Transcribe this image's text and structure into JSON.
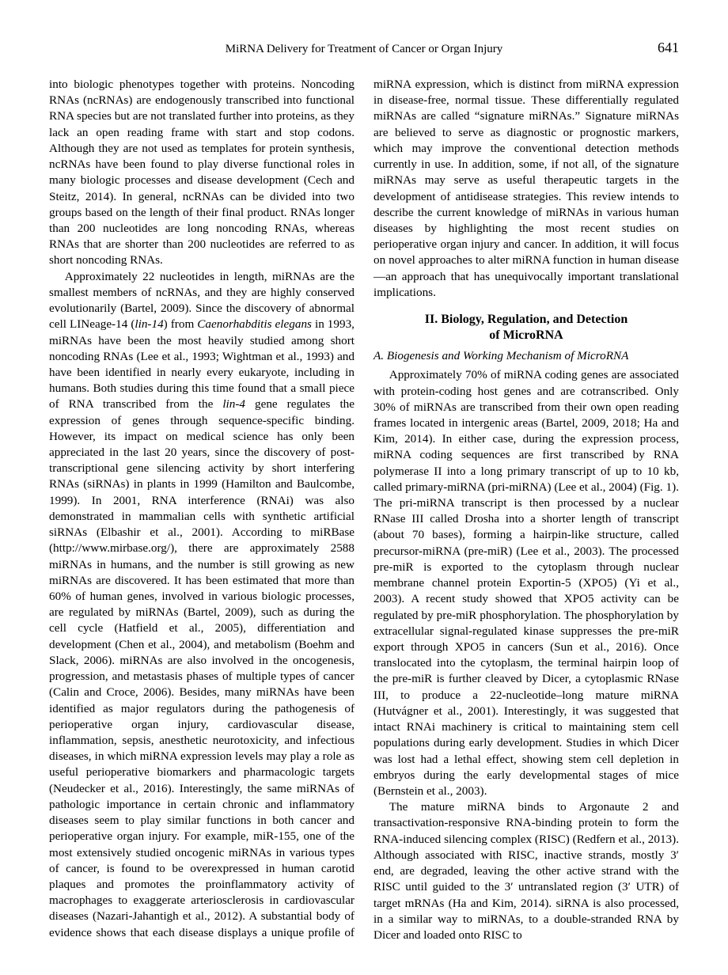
{
  "page": {
    "running_title": "MiRNA Delivery for Treatment of Cancer or Organ Injury",
    "page_number": "641"
  },
  "body": {
    "p1": "into biologic phenotypes together with proteins. Noncoding RNAs (ncRNAs) are endogenously transcribed into functional RNA species but are not translated further into proteins, as they lack an open reading frame with start and stop codons. Although they are not used as templates for protein synthesis, ncRNAs have been found to play diverse functional roles in many biologic processes and disease development (Cech and Steitz, 2014). In general, ncRNAs can be divided into two groups based on the length of their final product. RNAs longer than 200 nucleotides are long noncoding RNAs, whereas RNAs that are shorter than 200 nucleotides are referred to as short noncoding RNAs.",
    "p2a": "Approximately 22 nucleotides in length, miRNAs are the smallest members of ncRNAs, and they are highly conserved evolutionarily (Bartel, 2009). Since the discovery of abnormal cell LINeage-14 (",
    "p2b_ital": "lin-14",
    "p2c": ") from ",
    "p2d_ital": "Caenorhabditis elegans",
    "p2e": " in 1993, miRNAs have been the most heavily studied among short noncoding RNAs (Lee et al., 1993; Wightman et al., 1993) and have been identified in nearly every eukaryote, including in humans. Both studies during this time found that a small piece of RNA transcribed from the ",
    "p2f_ital": "lin-4",
    "p2g": " gene regulates the expression of genes through sequence-specific binding. However, its impact on medical science has only been appreciated in the last 20 years, since the discovery of post-transcriptional gene silencing activity by short interfering RNAs (siRNAs) in plants in 1999 (Hamilton and Baulcombe, 1999). In 2001, RNA interference (RNAi) was also demonstrated in mammalian cells with synthetic artificial siRNAs (Elbashir et al., 2001). According to miRBase (http://www.mirbase.org/), there are approximately 2588 miRNAs in humans, and the number is still growing as new miRNAs are discovered. It has been estimated that more than 60% of human genes, involved in various biologic processes, are regulated by miRNAs (Bartel, 2009), such as during the cell cycle (Hatfield et al., 2005), differentiation and development (Chen et al., 2004), and metabolism (Boehm and Slack, 2006). miRNAs are also involved in the oncogenesis, progression, and metastasis phases of multiple types of cancer (Calin and Croce, 2006). Besides, many miRNAs have been identified as major regulators during the pathogenesis of perioperative organ injury, cardiovascular disease, inflammation, sepsis, anesthetic neurotoxicity, and infectious diseases, in which miRNA expression levels may play a role as useful perioperative biomarkers and pharmacologic targets (Neudecker et al., 2016). Interestingly, the same miRNAs of pathologic importance in certain chronic and inflammatory diseases seem to play similar functions in both cancer and perioperative organ injury. For example, miR-155, one of the most extensively studied oncogenic miRNAs in various types of cancer, is found to be overexpressed in human carotid plaques and promotes the proinflammatory activity of macrophages to exaggerate arteriosclerosis in cardiovascular diseases (Nazari-Jahantigh et al., 2012). A substantial body of evidence shows that each disease displays a unique profile of miRNA expression, which is distinct from miRNA expression in disease-free, normal tissue. These differentially regulated miRNAs are called “signature miRNAs.” Signature miRNAs are believed to serve as diagnostic or prognostic markers, which may improve the conventional detection methods currently in use. In addition, some, if not all, of the signature miRNAs may serve as useful therapeutic targets in the development of antidisease strategies. This review intends to describe the current knowledge of miRNAs in various human diseases by highlighting the most recent studies on perioperative organ injury and cancer. In addition, it will focus on novel approaches to alter miRNA function in human disease—an approach that has unequivocally important translational implications.",
    "h2_l1": "II. Biology, Regulation, and Detection",
    "h2_l2": "of MicroRNA",
    "h3": "A. Biogenesis and Working Mechanism of MicroRNA",
    "p3": "Approximately 70% of miRNA coding genes are associated with protein-coding host genes and are cotranscribed. Only 30% of miRNAs are transcribed from their own open reading frames located in intergenic areas (Bartel, 2009, 2018; Ha and Kim, 2014). In either case, during the expression process, miRNA coding sequences are first transcribed by RNA polymerase II into a long primary transcript of up to 10 kb, called primary-miRNA (pri-miRNA) (Lee et al., 2004) (Fig. 1). The pri-miRNA transcript is then processed by a nuclear RNase III called Drosha into a shorter length of transcript (about 70 bases), forming a hairpin-like structure, called precursor-miRNA (pre-miR) (Lee et al., 2003). The processed pre-miR is exported to the cytoplasm through nuclear membrane channel protein Exportin-5 (XPO5) (Yi et al., 2003). A recent study showed that XPO5 activity can be regulated by pre-miR phosphorylation. The phosphorylation by extracellular signal-regulated kinase suppresses the pre-miR export through XPO5 in cancers (Sun et al., 2016). Once translocated into the cytoplasm, the terminal hairpin loop of the pre-miR is further cleaved by Dicer, a cytoplasmic RNase III, to produce a 22-nucleotide–long mature miRNA (Hutvágner et al., 2001). Interestingly, it was suggested that intact RNAi machinery is critical to maintaining stem cell populations during early development. Studies in which Dicer was lost had a lethal effect, showing stem cell depletion in embryos during the early developmental stages of mice (Bernstein et al., 2003).",
    "p4": "The mature miRNA binds to Argonaute 2 and transactivation-responsive RNA-binding protein to form the RNA-induced silencing complex (RISC) (Redfern et al., 2013). Although associated with RISC, inactive strands, mostly 3′ end, are degraded, leaving the other active strand with the RISC until guided to the 3′ untranslated region (3′ UTR) of target mRNAs (Ha and Kim, 2014). siRNA is also processed, in a similar way to miRNAs, to a double-stranded RNA by Dicer and loaded onto RISC to"
  }
}
